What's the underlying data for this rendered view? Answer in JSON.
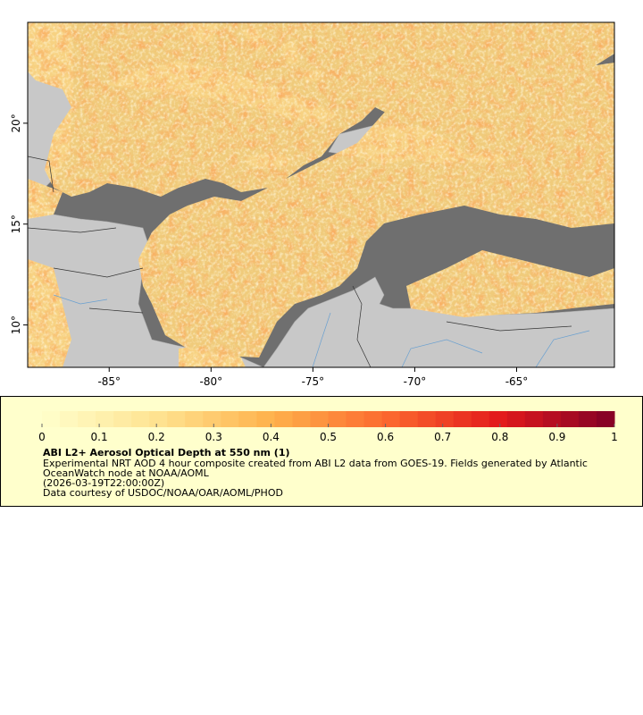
{
  "map": {
    "xlim": [
      -89,
      -60.2
    ],
    "ylim": [
      7.9,
      25
    ],
    "xticks": [
      {
        "value": -85,
        "label": "-85°"
      },
      {
        "value": -80,
        "label": "-80°"
      },
      {
        "value": -75,
        "label": "-75°"
      },
      {
        "value": -70,
        "label": "-70°"
      },
      {
        "value": -65,
        "label": "-65°"
      }
    ],
    "yticks": [
      {
        "value": 10,
        "label": "10°"
      },
      {
        "value": 15,
        "label": "15°"
      },
      {
        "value": 20,
        "label": "20°"
      }
    ]
  },
  "colorbar": {
    "range": [
      0,
      1
    ],
    "ticks": [
      0,
      0.1,
      0.2,
      0.3,
      0.4,
      0.5,
      0.6,
      0.7,
      0.8,
      0.9,
      1
    ],
    "colors": [
      "#ffffcc",
      "#fee391",
      "#feb24c",
      "#fc6a2f",
      "#e31a1c",
      "#800026"
    ]
  },
  "legend": {
    "title": "ABI L2+ Aerosol Optical Depth at 550 nm (1)",
    "lines": [
      "Experimental NRT AOD 4 hour composite created from ABI L2 data from GOES-19. Fields generated by Atlantic",
      "OceanWatch node at NOAA/AOML",
      "(2026-03-19T22:00:00Z)",
      "Data courtesy of USDOC/NOAA/OAR/AOML/PHOD"
    ]
  }
}
